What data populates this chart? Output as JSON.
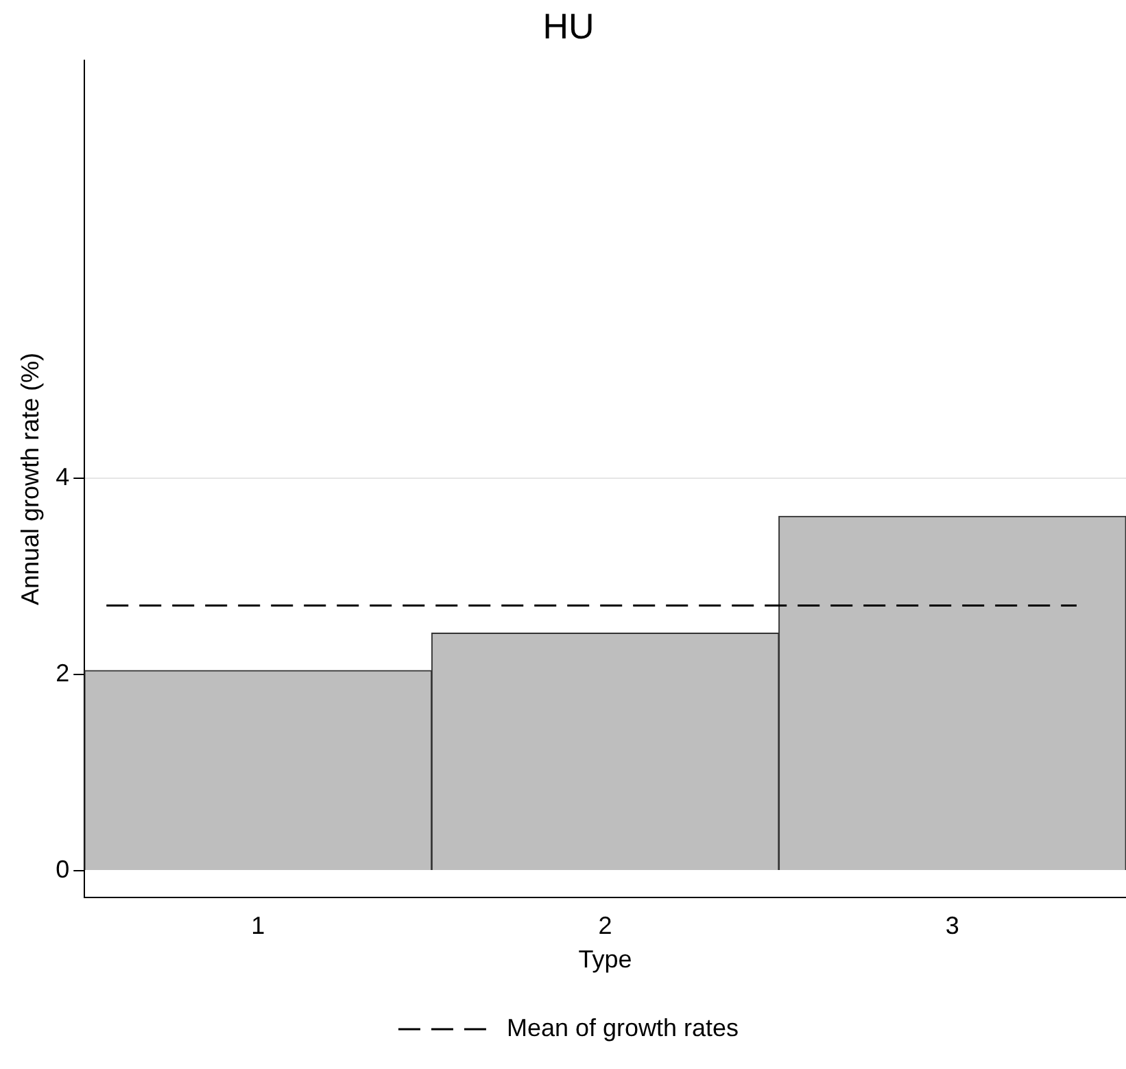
{
  "chart_data": {
    "type": "bar",
    "title": "HU",
    "xlabel": "Type",
    "ylabel": "Annual growth rate (%)",
    "categories": [
      "1",
      "2",
      "3"
    ],
    "values": [
      2.04,
      2.42,
      3.61
    ],
    "color": "#bebebe",
    "ylim": [
      -0.27,
      8.25
    ],
    "yticks": [
      0,
      2,
      4
    ],
    "grid": "y",
    "ref_lines": [
      {
        "axis": "y",
        "value": 2.7,
        "label": "Mean of growth rates",
        "color": "#000000",
        "line_style": "dashed"
      }
    ],
    "legend": "bottom"
  }
}
